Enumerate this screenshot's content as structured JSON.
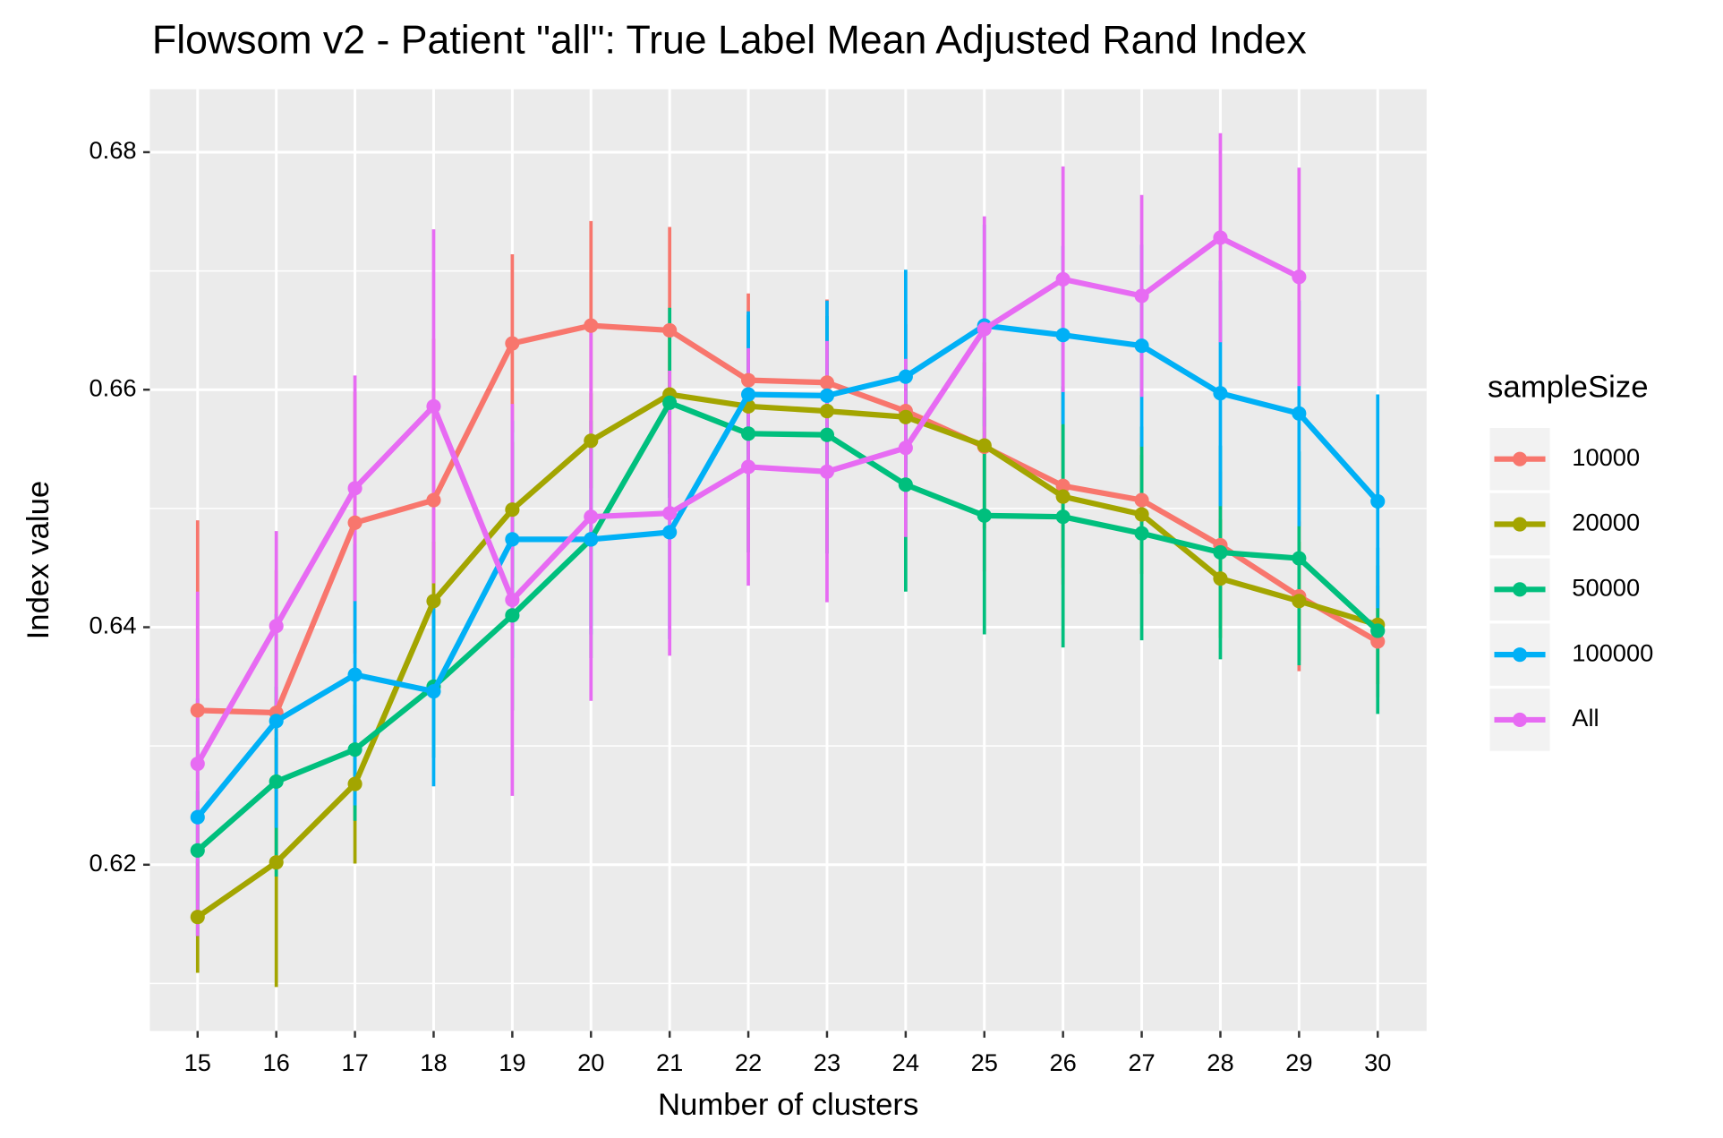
{
  "chart_data": {
    "type": "line",
    "title": "Flowsom v2 - Patient \"all\": True Label Mean Adjusted Rand Index",
    "x_label": "Number of clusters",
    "y_label": "Index value",
    "legend_title": "sampleSize",
    "legend": "right",
    "grid": true,
    "categories": [
      "15",
      "16",
      "17",
      "18",
      "19",
      "20",
      "21",
      "22",
      "23",
      "24",
      "25",
      "26",
      "27",
      "28",
      "29",
      "30"
    ],
    "ylim": [
      0.606,
      0.6853
    ],
    "yticks": [
      {
        "value": 0.62,
        "label": "0.62"
      },
      {
        "value": 0.64,
        "label": "0.64"
      },
      {
        "value": 0.66,
        "label": "0.66"
      },
      {
        "value": 0.68,
        "label": "0.68"
      }
    ],
    "minor_yticks": [
      0.61,
      0.63,
      0.65,
      0.67
    ],
    "series": [
      {
        "name": "10000",
        "color": "#F8766D",
        "values": [
          0.633,
          0.6328,
          0.6488,
          0.6507,
          0.6639,
          0.6654,
          0.665,
          0.6608,
          0.6606,
          0.6582,
          0.6552,
          0.6519,
          0.6507,
          0.6469,
          0.6426,
          0.6388
        ],
        "errors": [
          0.016,
          0.012,
          0.011,
          0.0136,
          0.0075,
          0.0088,
          0.0087,
          0.0073,
          0.007,
          0.0073,
          0.0105,
          0.0083,
          0.005,
          0.0062,
          0.0063,
          0.0047
        ]
      },
      {
        "name": "20000",
        "color": "#A3A500",
        "values": [
          0.6156,
          0.6202,
          0.6268,
          0.6422,
          0.6499,
          0.6557,
          0.6596,
          0.6586,
          0.6582,
          0.6577,
          0.6553,
          0.651,
          0.6495,
          0.6441,
          0.6422,
          0.6402
        ],
        "errors": [
          0.0047,
          0.0105,
          0.0067,
          0.005,
          0.0057,
          0.004,
          0.005,
          0.004,
          0.004,
          0.004,
          0.007,
          0.006,
          0.005,
          0.005,
          0.005,
          0.005
        ]
      },
      {
        "name": "50000",
        "color": "#00BF7D",
        "values": [
          0.6212,
          0.627,
          0.6297,
          0.635,
          0.641,
          0.6474,
          0.6589,
          0.6563,
          0.6562,
          0.652,
          0.6494,
          0.6493,
          0.6479,
          0.6463,
          0.6458,
          0.6397
        ],
        "errors": [
          0.005,
          0.008,
          0.006,
          0.006,
          0.008,
          0.01,
          0.008,
          0.01,
          0.01,
          0.009,
          0.01,
          0.011,
          0.009,
          0.009,
          0.009,
          0.007
        ]
      },
      {
        "name": "100000",
        "color": "#00B0F6",
        "values": [
          0.624,
          0.6321,
          0.636,
          0.6346,
          0.6474,
          0.6474,
          0.648,
          0.6596,
          0.6595,
          0.6611,
          0.6654,
          0.6646,
          0.6637,
          0.6597,
          0.658,
          0.6506
        ],
        "errors": [
          0.01,
          0.009,
          0.011,
          0.008,
          0.01,
          0.008,
          0.009,
          0.007,
          0.008,
          0.009,
          0.0085,
          0.0075,
          0.0085,
          0.0095,
          0.0095,
          0.009
        ]
      },
      {
        "name": "All",
        "color": "#E76BF3",
        "values": [
          0.6285,
          0.6401,
          0.6517,
          0.6586,
          0.6423,
          0.6493,
          0.6496,
          0.6535,
          0.6531,
          0.6551,
          0.6651,
          0.6693,
          0.6679,
          0.6728,
          0.6695,
          null
        ],
        "errors": [
          0.0145,
          0.008,
          0.0095,
          0.0149,
          0.0165,
          0.0155,
          0.012,
          0.01,
          0.011,
          0.0075,
          0.0095,
          0.0095,
          0.0085,
          0.0088,
          0.0092,
          null
        ]
      }
    ]
  }
}
